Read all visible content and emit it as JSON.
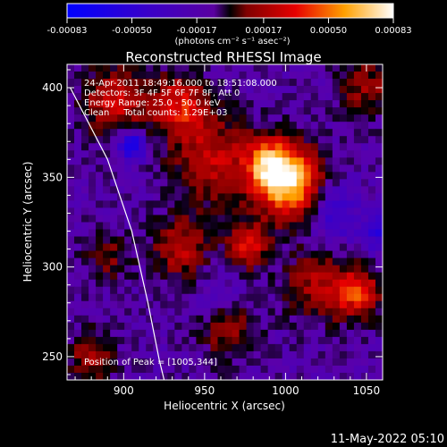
{
  "chart_data": {
    "type": "heatmap",
    "title": "Reconstructed RHESSI Image",
    "xlabel": "Heliocentric X (arcsec)",
    "ylabel": "Heliocentric Y (arcsec)",
    "xlim": [
      865,
      1060
    ],
    "ylim": [
      237,
      413
    ],
    "x_ticks": [
      "900",
      "950",
      "1000",
      "1050"
    ],
    "x_tick_values": [
      900,
      950,
      1000,
      1050
    ],
    "y_ticks": [
      "250",
      "300",
      "350",
      "400"
    ],
    "y_tick_values": [
      250,
      300,
      350,
      400
    ],
    "colorbar": {
      "ticks": [
        "-0.00083",
        "-0.00050",
        "-0.00017",
        "0.00017",
        "0.00050",
        "0.00083"
      ],
      "tick_values": [
        -0.00083,
        -0.0005,
        -0.00017,
        0.00017,
        0.0005,
        0.00083
      ],
      "range": [
        -0.00083,
        0.00083
      ],
      "unit_label": "(photons cm⁻² s⁻¹ asec⁻²)"
    },
    "annotations": [
      "24-Apr-2011 18:49:16.000 to 18:51:08.000",
      "Detectors: 3F 4F 5F 6F 7F 8F, Att 0",
      "Energy Range: 25.0 - 50.0 keV",
      "Clean     Total counts: 1.29E+03"
    ],
    "peak_label": "Position of Peak = [1005,344]",
    "peak": [
      1005,
      344
    ],
    "limb_curve": [
      [
        867,
        400
      ],
      [
        890,
        360
      ],
      [
        905,
        320
      ],
      [
        915,
        280
      ],
      [
        922,
        248
      ],
      [
        925,
        237
      ]
    ],
    "sources": [
      {
        "x": 1002,
        "y": 347,
        "sigma": 14,
        "amp": 1.0
      },
      {
        "x": 990,
        "y": 357,
        "sigma": 10,
        "amp": 0.65
      },
      {
        "x": 955,
        "y": 360,
        "sigma": 18,
        "amp": 0.45
      },
      {
        "x": 935,
        "y": 390,
        "sigma": 12,
        "amp": 0.55
      },
      {
        "x": 895,
        "y": 392,
        "sigma": 14,
        "amp": 0.5
      },
      {
        "x": 935,
        "y": 310,
        "sigma": 12,
        "amp": 0.45
      },
      {
        "x": 977,
        "y": 312,
        "sigma": 9,
        "amp": 0.55
      },
      {
        "x": 1020,
        "y": 290,
        "sigma": 14,
        "amp": 0.4
      },
      {
        "x": 1045,
        "y": 285,
        "sigma": 10,
        "amp": 0.6
      },
      {
        "x": 1050,
        "y": 400,
        "sigma": 12,
        "amp": 0.35
      },
      {
        "x": 880,
        "y": 250,
        "sigma": 10,
        "amp": 0.4
      },
      {
        "x": 890,
        "y": 305,
        "sigma": 10,
        "amp": 0.3
      },
      {
        "x": 965,
        "y": 265,
        "sigma": 12,
        "amp": 0.35
      },
      {
        "x": 905,
        "y": 368,
        "sigma": 6,
        "amp": -0.7
      },
      {
        "x": 1030,
        "y": 330,
        "sigma": 11,
        "amp": -0.35
      },
      {
        "x": 1060,
        "y": 320,
        "sigma": 8,
        "amp": -0.45
      },
      {
        "x": 960,
        "y": 285,
        "sigma": 10,
        "amp": -0.15
      }
    ]
  },
  "footer": {
    "date": "11-May-2022 05:10"
  }
}
